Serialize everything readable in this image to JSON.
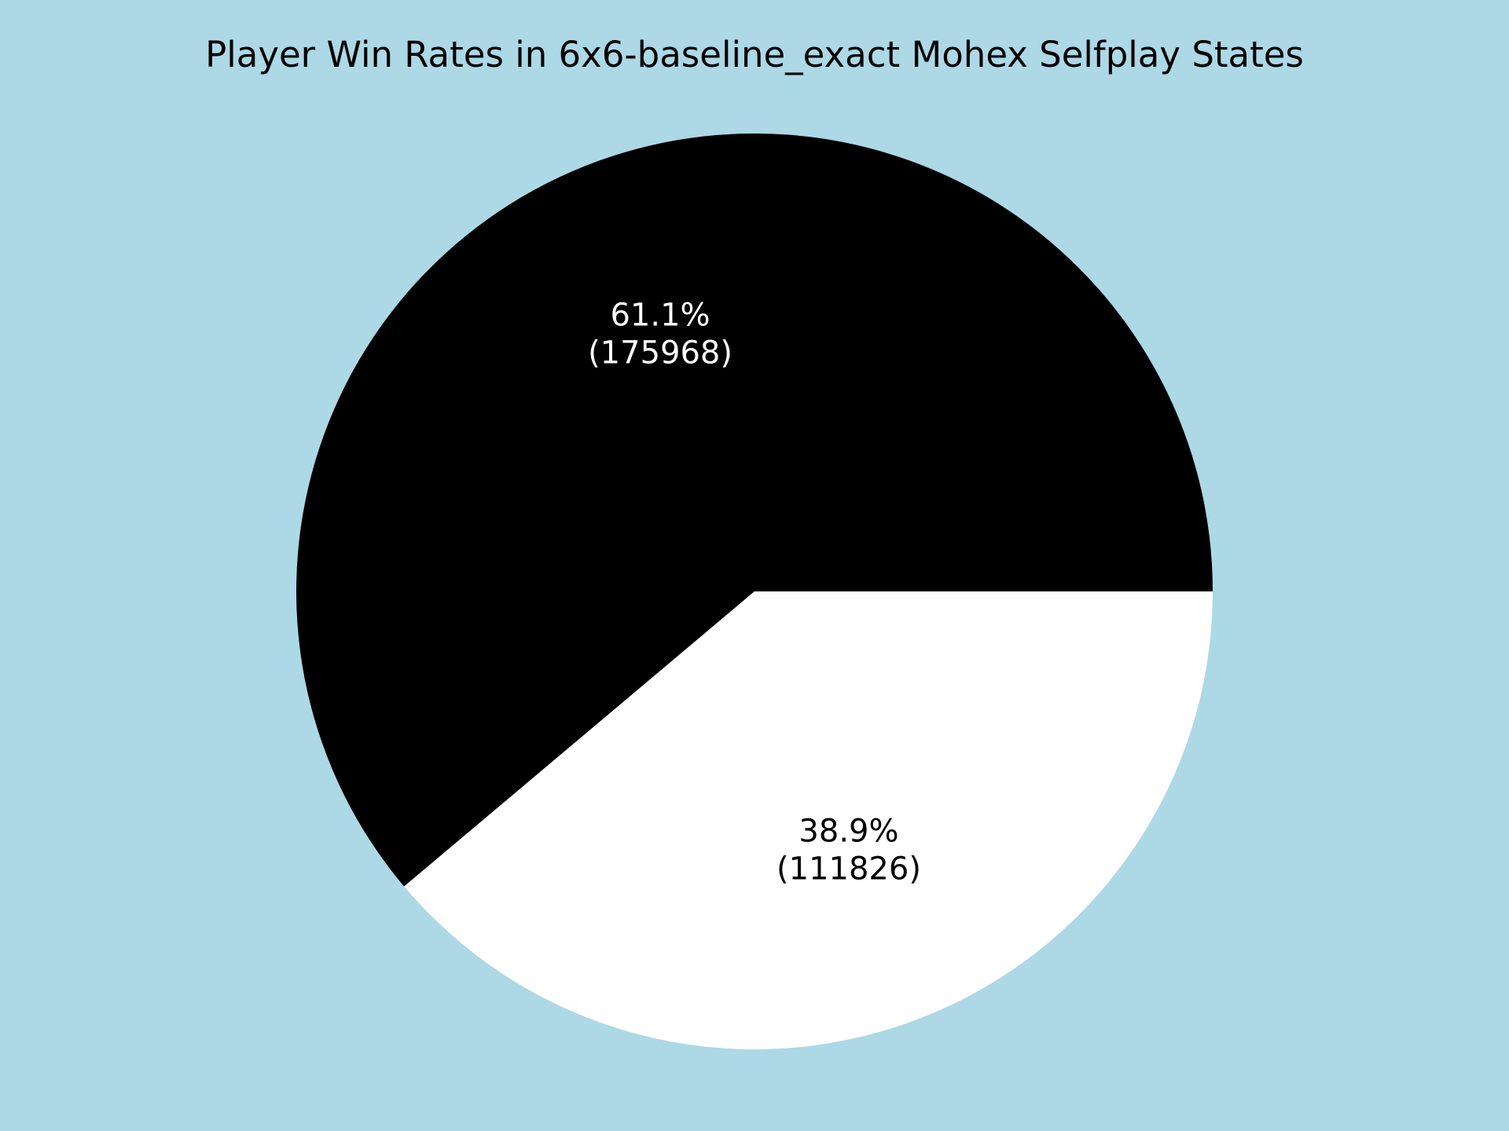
{
  "chart_data": {
    "type": "pie",
    "title": "Player Win Rates in 6x6-baseline_exact Mohex Selfplay States",
    "slices": [
      {
        "value": 175968,
        "percent_label": "61.1%",
        "count_label": "(175968)",
        "color": "#000000",
        "label_color": "#ffffff"
      },
      {
        "value": 111826,
        "percent_label": "38.9%",
        "count_label": "(111826)",
        "color": "#ffffff",
        "label_color": "#000000"
      }
    ],
    "start_angle_deg": 0,
    "direction": "counterclockwise",
    "legend": "none"
  },
  "colors": {
    "background": "#add8e6"
  }
}
